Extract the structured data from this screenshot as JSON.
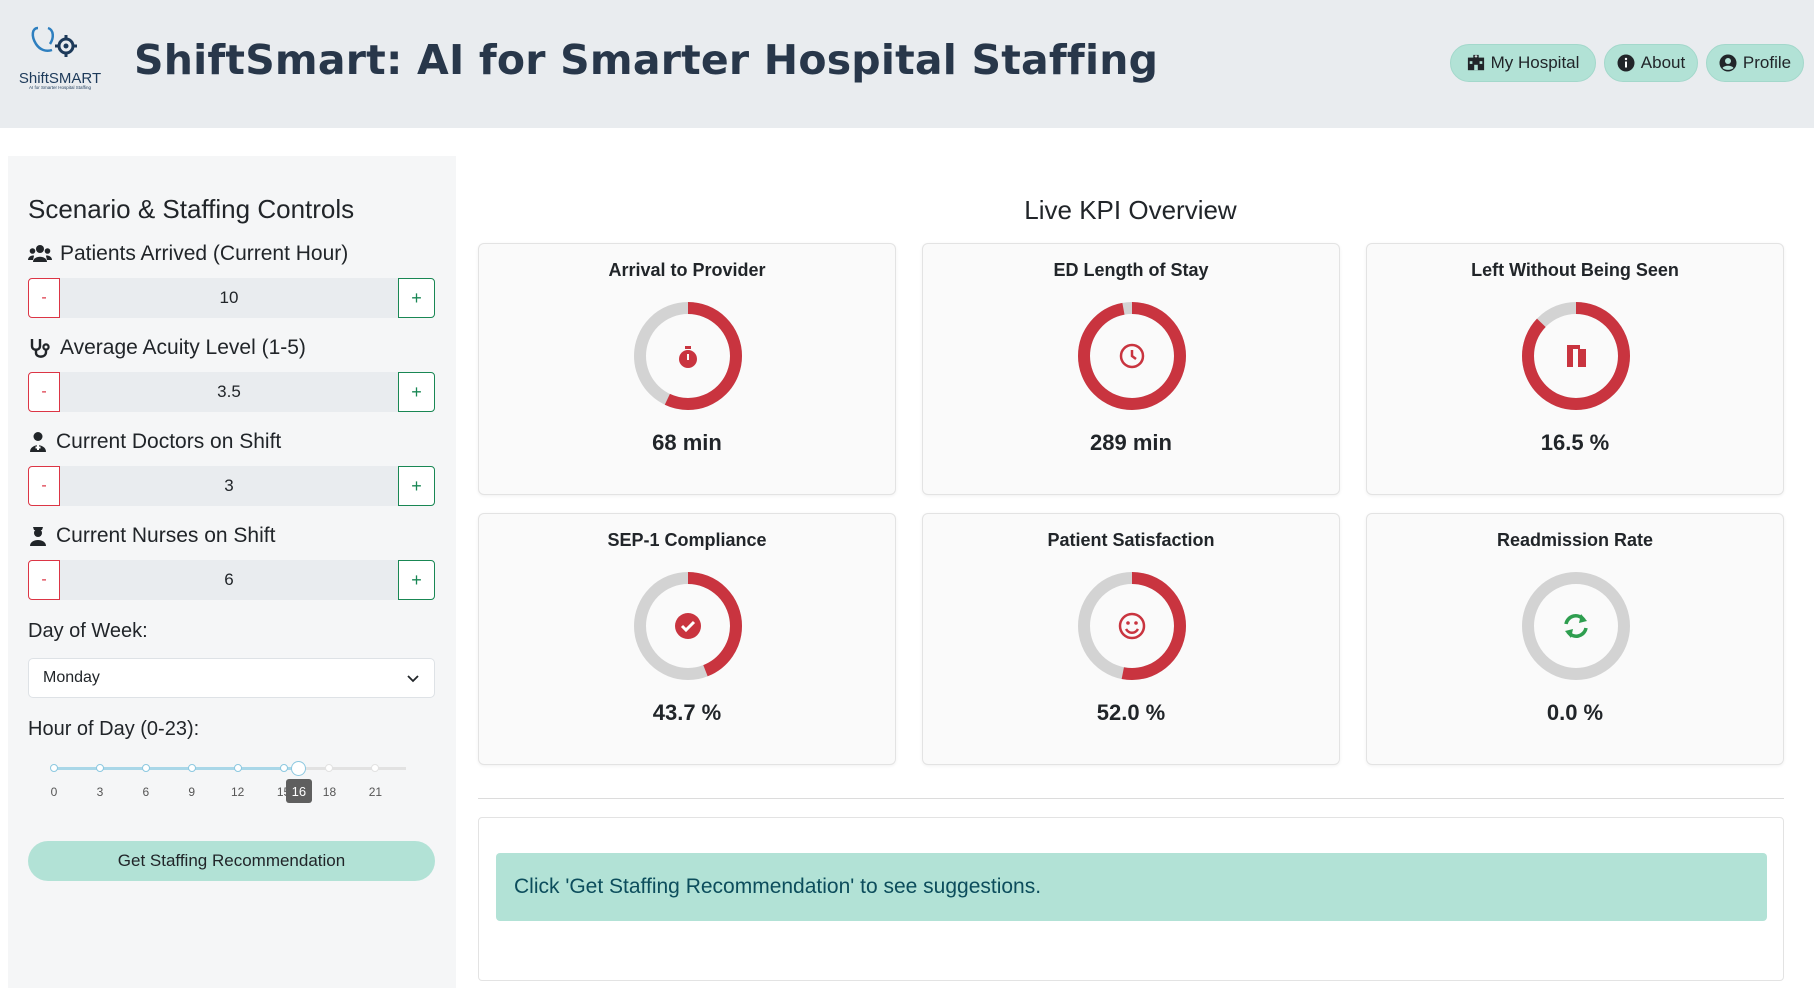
{
  "header": {
    "logo_text": "ShiftSMART",
    "logo_subtext": "AI for Smarter Hospital Staffing",
    "title": "ShiftSmart: AI for Smarter Hospital Staffing",
    "nav": [
      {
        "label": "My Hospital",
        "icon": "hospital-icon"
      },
      {
        "label": "About",
        "icon": "info-icon"
      },
      {
        "label": "Profile",
        "icon": "user-circle-icon"
      }
    ]
  },
  "sidebar": {
    "title": "Scenario & Staffing Controls",
    "controls": [
      {
        "label": "Patients Arrived (Current Hour)",
        "value": "10",
        "icon": "users-icon"
      },
      {
        "label": "Average Acuity Level (1-5)",
        "value": "3.5",
        "icon": "stethoscope-icon"
      },
      {
        "label": "Current Doctors on Shift",
        "value": "3",
        "icon": "doctor-icon"
      },
      {
        "label": "Current Nurses on Shift",
        "value": "6",
        "icon": "nurse-icon"
      }
    ],
    "minus_label": "-",
    "plus_label": "+",
    "day_label": "Day of Week:",
    "day_value": "Monday",
    "hour_label": "Hour of Day (0-23):",
    "hour_ticks": [
      "0",
      "3",
      "6",
      "9",
      "12",
      "15",
      "18",
      "21"
    ],
    "hour_value": "16",
    "hour_min": 0,
    "hour_max": 23,
    "button_label": "Get Staffing Recommendation"
  },
  "main": {
    "title": "Live KPI Overview",
    "kpis": [
      {
        "title": "Arrival to Provider",
        "value": "68 min",
        "fraction": 0.57,
        "icon": "stopwatch-icon",
        "icon_color": "#c9343f"
      },
      {
        "title": "ED Length of Stay",
        "value": "289 min",
        "fraction": 0.97,
        "icon": "clock-icon",
        "icon_color": "#c9343f"
      },
      {
        "title": "Left Without Being Seen",
        "value": "16.5 %",
        "fraction": 0.87,
        "icon": "door-exit-icon",
        "icon_color": "#c9343f"
      },
      {
        "title": "SEP-1 Compliance",
        "value": "43.7 %",
        "fraction": 0.44,
        "icon": "check-circle-icon",
        "icon_color": "#c9343f"
      },
      {
        "title": "Patient Satisfaction",
        "value": "52.0 %",
        "fraction": 0.53,
        "icon": "smile-icon",
        "icon_color": "#c9343f"
      },
      {
        "title": "Readmission Rate",
        "value": "0.0 %",
        "fraction": 0.0,
        "icon": "refresh-icon",
        "icon_color": "#2e9e4f"
      }
    ],
    "recommendation_text": "Click 'Get Staffing Recommendation' to see suggestions."
  },
  "colors": {
    "ring_active": "#c9343f",
    "ring_track": "#d3d3d3",
    "accent": "#b2e2d6"
  }
}
